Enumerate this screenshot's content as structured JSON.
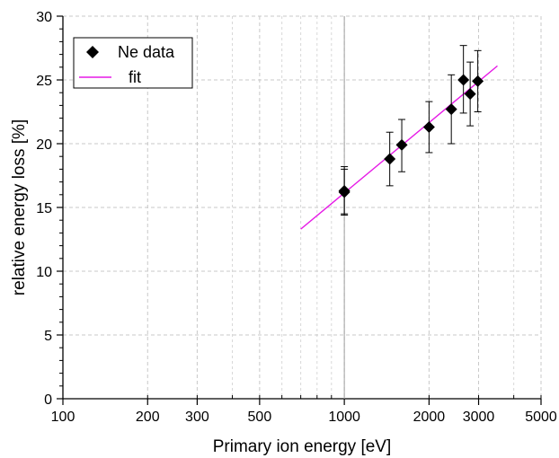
{
  "chart_data": {
    "type": "scatter",
    "xlabel": "Primary ion energy [eV]",
    "ylabel": "relative energy loss [%]",
    "xscale": "log",
    "xlim": [
      100,
      5000
    ],
    "ylim": [
      0,
      30
    ],
    "grid": true,
    "legend": "top-left",
    "x_ticks": [
      100,
      200,
      300,
      500,
      1000,
      2000,
      3000,
      5000
    ],
    "x_tick_labels": [
      "100",
      "200",
      "300",
      "500",
      "1000",
      "2000",
      "3000",
      "5000"
    ],
    "y_ticks": [
      0,
      5,
      10,
      15,
      20,
      25,
      30
    ],
    "y_tick_labels": [
      "0",
      "5",
      "10",
      "15",
      "20",
      "25",
      "30"
    ],
    "series": [
      {
        "name": "Ne data",
        "marker": "diamond",
        "color": "#000000",
        "points": [
          {
            "x": 1000,
            "y": 16.3,
            "err_low": 14.5,
            "err_high": 18.2
          },
          {
            "x": 1000,
            "y": 16.2,
            "err_low": 14.4,
            "err_high": 18.0
          },
          {
            "x": 1450,
            "y": 18.8,
            "err_low": 16.7,
            "err_high": 20.9
          },
          {
            "x": 1600,
            "y": 19.9,
            "err_low": 17.8,
            "err_high": 21.9
          },
          {
            "x": 2000,
            "y": 21.3,
            "err_low": 19.3,
            "err_high": 23.3
          },
          {
            "x": 2400,
            "y": 22.7,
            "err_low": 20.0,
            "err_high": 25.4
          },
          {
            "x": 2650,
            "y": 25.0,
            "err_low": 22.4,
            "err_high": 27.7
          },
          {
            "x": 2800,
            "y": 23.9,
            "err_low": 21.4,
            "err_high": 26.4
          },
          {
            "x": 2980,
            "y": 24.9,
            "err_low": 22.5,
            "err_high": 27.3
          }
        ]
      },
      {
        "name": "fit",
        "type": "line",
        "color": "#e619e6",
        "x": [
          700,
          3500
        ],
        "y": [
          13.3,
          26.1
        ]
      }
    ],
    "vertical_reference_line_x": 1000
  }
}
